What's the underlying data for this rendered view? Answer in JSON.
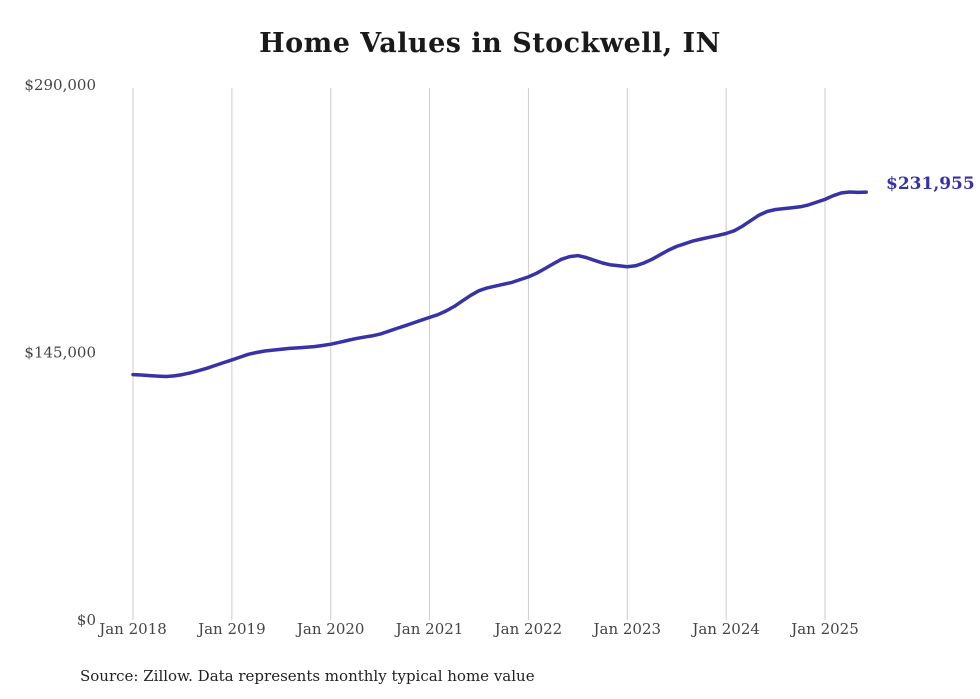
{
  "title": "Home Values in Stockwell, IN",
  "source_note": "Source: Zillow. Data represents monthly typical home value",
  "colors": {
    "line": "#3733a7",
    "gridline": "#cccccc",
    "axis_text": "#444444",
    "title_text": "#1a1a1a",
    "end_label": "#3733a7"
  },
  "chart_data": {
    "type": "line",
    "title": "Home Values in Stockwell, IN",
    "xlabel": "",
    "ylabel": "",
    "ylim": [
      0,
      290000
    ],
    "grid": "vertical-only",
    "legend": "none",
    "end_label": "$231,955",
    "y_ticks": [
      {
        "value": 0,
        "label": "$0"
      },
      {
        "value": 145000,
        "label": "$145,000"
      },
      {
        "value": 290000,
        "label": "$290,000"
      }
    ],
    "x_ticks": [
      {
        "month_index": 0,
        "label": "Jan 2018"
      },
      {
        "month_index": 12,
        "label": "Jan 2019"
      },
      {
        "month_index": 24,
        "label": "Jan 2020"
      },
      {
        "month_index": 36,
        "label": "Jan 2021"
      },
      {
        "month_index": 48,
        "label": "Jan 2022"
      },
      {
        "month_index": 60,
        "label": "Jan 2023"
      },
      {
        "month_index": 72,
        "label": "Jan 2024"
      },
      {
        "month_index": 84,
        "label": "Jan 2025"
      }
    ],
    "series": [
      {
        "name": "Typical home value",
        "start": "2018-01",
        "frequency": "monthly",
        "values": [
          133000,
          132800,
          132500,
          132200,
          132000,
          132300,
          133000,
          134000,
          135200,
          136500,
          138000,
          139500,
          141000,
          142500,
          144000,
          145000,
          145800,
          146300,
          146800,
          147200,
          147500,
          147800,
          148200,
          148800,
          149500,
          150500,
          151500,
          152500,
          153300,
          154000,
          155000,
          156500,
          158000,
          159500,
          161000,
          162500,
          164000,
          165500,
          167500,
          170000,
          173000,
          176000,
          178500,
          180000,
          181000,
          182000,
          183000,
          184500,
          186000,
          188000,
          190500,
          193000,
          195500,
          197000,
          197500,
          196500,
          195000,
          193500,
          192500,
          192000,
          191500,
          192000,
          193500,
          195500,
          198000,
          200500,
          202500,
          204000,
          205500,
          206500,
          207500,
          208500,
          209500,
          211000,
          213500,
          216500,
          219500,
          221500,
          222500,
          223000,
          223500,
          224000,
          225000,
          226500,
          228000,
          230000,
          231500,
          232000,
          231800,
          231955
        ]
      }
    ]
  }
}
